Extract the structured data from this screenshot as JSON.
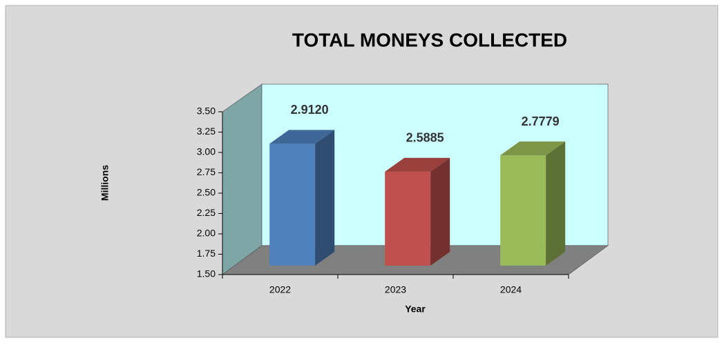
{
  "chart_data": {
    "type": "bar3d",
    "title": "TOTAL MONEYS COLLECTED",
    "categories": [
      "2022",
      "2023",
      "2024"
    ],
    "values": [
      2.912,
      2.5885,
      2.7779
    ],
    "value_labels": [
      "2.9120",
      "2.5885",
      "2.7779"
    ],
    "colors": [
      "#4f81bd",
      "#c0504d",
      "#9bbb59"
    ],
    "y_label": "Millions",
    "x_label": "Year",
    "ylim": [
      1.5,
      3.5
    ],
    "yticks": [
      {
        "value": 1.5,
        "label": "1.50"
      },
      {
        "value": 1.75,
        "label": "1.75"
      },
      {
        "value": 2,
        "label": "2.00"
      },
      {
        "value": 2.25,
        "label": "2.25"
      },
      {
        "value": 2.5,
        "label": "2.50"
      },
      {
        "value": 2.75,
        "label": "2.75"
      },
      {
        "value": 3,
        "label": "3.00"
      },
      {
        "value": 3.25,
        "label": "3.25"
      },
      {
        "value": 3.5,
        "label": "3.50"
      }
    ]
  }
}
